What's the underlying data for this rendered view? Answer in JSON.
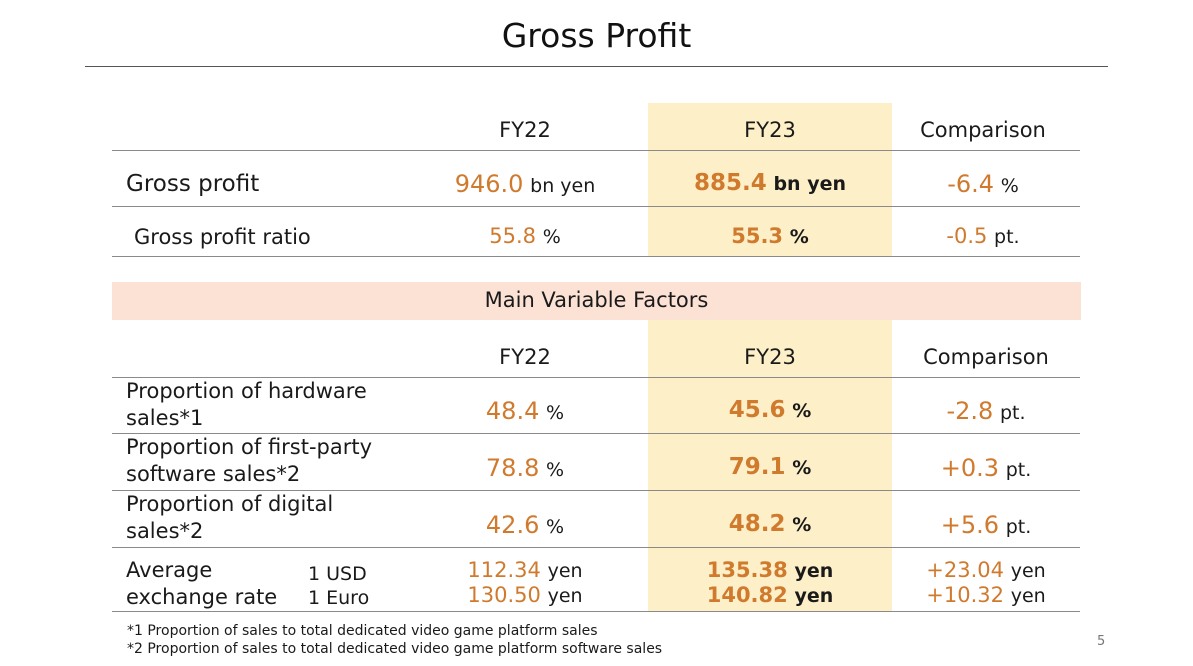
{
  "title": "Gross Profit",
  "columns": {
    "fy22": "FY22",
    "fy23": "FY23",
    "comparison": "Comparison"
  },
  "gross_profit": {
    "label": "Gross profit",
    "fy22": {
      "value": "946.0",
      "unit": "bn yen"
    },
    "fy23": {
      "value": "885.4",
      "unit": "bn yen"
    },
    "comparison": {
      "value": "-6.4",
      "unit": "%"
    }
  },
  "gross_profit_ratio": {
    "label": "Gross profit ratio",
    "fy22": {
      "value": "55.8",
      "unit": "%"
    },
    "fy23": {
      "value": "55.3",
      "unit": "%"
    },
    "comparison": {
      "value": "-0.5",
      "unit": "pt."
    }
  },
  "factors": {
    "title": "Main Variable Factors",
    "columns": {
      "fy22": "FY22",
      "fy23": "FY23",
      "comparison": "Comparison"
    },
    "hardware": {
      "label_line1": "Proportion of hardware",
      "label_line2": "sales*1",
      "fy22": {
        "value": "48.4",
        "unit": "%"
      },
      "fy23": {
        "value": "45.6",
        "unit": "%"
      },
      "comparison": {
        "value": "-2.8",
        "unit": "pt."
      }
    },
    "first_party": {
      "label_line1": "Proportion of first-party",
      "label_line2": "software sales*2",
      "fy22": {
        "value": "78.8",
        "unit": "%"
      },
      "fy23": {
        "value": "79.1",
        "unit": "%"
      },
      "comparison": {
        "value": "+0.3",
        "unit": "pt."
      }
    },
    "digital": {
      "label_line1": "Proportion of digital",
      "label_line2": "sales*2",
      "fy22": {
        "value": "42.6",
        "unit": "%"
      },
      "fy23": {
        "value": "48.2",
        "unit": "%"
      },
      "comparison": {
        "value": "+5.6",
        "unit": "pt."
      }
    },
    "exchange": {
      "label_line1": "Average",
      "label_line2": "exchange rate",
      "currency_usd": "1 USD",
      "currency_euro": "1 Euro",
      "fy22": {
        "usd": "112.34",
        "euro": "130.50",
        "unit": "yen"
      },
      "fy23": {
        "usd": "135.38",
        "euro": "140.82",
        "unit": "yen"
      },
      "comparison": {
        "usd": "+23.04",
        "euro": "+10.32",
        "unit": "yen"
      }
    }
  },
  "footnotes": [
    "*1 Proportion of sales to total dedicated video game platform sales",
    "*2 Proportion of sales to total dedicated video game platform software sales"
  ],
  "page_number": "5"
}
